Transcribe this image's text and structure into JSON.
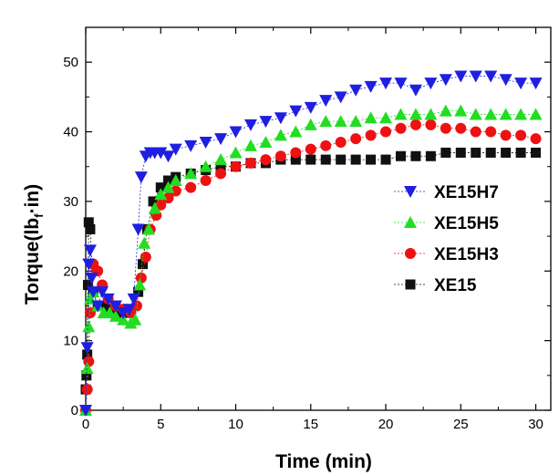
{
  "chart_data": {
    "type": "scatter",
    "xlabel": "Time (min)",
    "ylabel": {
      "prefix": "Torque(lb",
      "subscript": "f",
      "suffix": "·in)"
    },
    "xlim": [
      0,
      31
    ],
    "ylim": [
      0,
      55
    ],
    "xticks": [
      0,
      5,
      10,
      15,
      20,
      25,
      30
    ],
    "yticks": [
      0,
      10,
      20,
      30,
      40,
      50
    ],
    "grid": false,
    "legend_position": "right-middle",
    "series": [
      {
        "name": "XE15H7",
        "marker": "triangle-down",
        "color": "#1f1fe0",
        "x": [
          0,
          0.1,
          0.2,
          0.3,
          0.4,
          0.5,
          0.8,
          1.1,
          1.5,
          2,
          2.5,
          2.9,
          3.2,
          3.5,
          3.7,
          4,
          4.3,
          4.6,
          5,
          5.5,
          6,
          7,
          8,
          9,
          10,
          11,
          12,
          13,
          14,
          15,
          16,
          17,
          18,
          19,
          20,
          21,
          22,
          23,
          24,
          25,
          26,
          27,
          28,
          29,
          30
        ],
        "y": [
          0,
          9,
          21,
          23,
          19,
          17,
          15,
          17,
          16,
          15,
          14,
          14.5,
          16,
          26,
          33.5,
          36.5,
          37,
          37,
          37,
          36.5,
          37.5,
          38,
          38.5,
          39,
          40,
          41,
          41.5,
          42,
          43,
          43.5,
          44.5,
          45,
          46,
          46.5,
          47,
          47,
          46,
          47,
          47.5,
          48,
          48,
          48,
          47.5,
          47,
          47
        ]
      },
      {
        "name": "XE15H5",
        "marker": "triangle-up",
        "color": "#22dd22",
        "x": [
          0,
          0.1,
          0.2,
          0.3,
          0.5,
          0.8,
          1.2,
          1.6,
          2,
          2.5,
          3,
          3.3,
          3.6,
          3.9,
          4.2,
          4.6,
          5,
          5.5,
          6,
          7,
          8,
          9,
          10,
          11,
          12,
          13,
          14,
          15,
          16,
          17,
          18,
          19,
          20,
          21,
          22,
          23,
          24,
          25,
          26,
          27,
          28,
          29,
          30
        ],
        "y": [
          0,
          6,
          12,
          16,
          17,
          15,
          14,
          14,
          13.5,
          13,
          12.5,
          13,
          18,
          24,
          26,
          29,
          31,
          32,
          33,
          34,
          35,
          36,
          37,
          38,
          38.5,
          39.5,
          40,
          41,
          41.5,
          41.5,
          41.5,
          42,
          42,
          42.5,
          42.5,
          42.5,
          43,
          43,
          42.5,
          42.5,
          42.5,
          42.5,
          42.5
        ]
      },
      {
        "name": "XE15H3",
        "marker": "circle",
        "color": "#ee1111",
        "x": [
          0,
          0.1,
          0.2,
          0.3,
          0.5,
          0.8,
          1.1,
          1.5,
          2,
          2.5,
          3,
          3.4,
          3.7,
          4,
          4.3,
          4.7,
          5,
          5.5,
          6,
          7,
          8,
          9,
          10,
          11,
          12,
          13,
          14,
          15,
          16,
          17,
          18,
          19,
          20,
          21,
          22,
          23,
          24,
          25,
          26,
          27,
          28,
          29,
          30
        ],
        "y": [
          0,
          3,
          7,
          14,
          21,
          20,
          18,
          16,
          15,
          14.5,
          14,
          15,
          19,
          22,
          26,
          28,
          29.5,
          30.5,
          31.5,
          32,
          33,
          34,
          35,
          35.5,
          36,
          36.5,
          37,
          37.5,
          38,
          38.5,
          39,
          39.5,
          40,
          40.5,
          41,
          41,
          40.5,
          40.5,
          40,
          40,
          39.5,
          39.5,
          39
        ]
      },
      {
        "name": "XE15",
        "marker": "square",
        "color": "#111111",
        "x": [
          0,
          0.05,
          0.1,
          0.15,
          0.2,
          0.3,
          0.5,
          0.8,
          1.2,
          1.6,
          2,
          2.5,
          3,
          3.5,
          3.8,
          4.1,
          4.5,
          5,
          5.5,
          6,
          7,
          8,
          9,
          10,
          11,
          12,
          13,
          14,
          15,
          16,
          17,
          18,
          19,
          20,
          21,
          22,
          23,
          24,
          25,
          26,
          27,
          28,
          29,
          30
        ],
        "y": [
          3,
          5,
          8,
          18,
          27,
          26,
          17,
          15,
          15,
          14.5,
          14.5,
          14,
          14,
          17,
          21,
          26,
          30,
          32,
          33,
          33.5,
          34,
          34.5,
          35,
          35,
          35.5,
          35.5,
          36,
          36,
          36,
          36,
          36,
          36,
          36,
          36,
          36.5,
          36.5,
          36.5,
          37,
          37,
          37,
          37,
          37,
          37,
          37
        ]
      }
    ]
  }
}
